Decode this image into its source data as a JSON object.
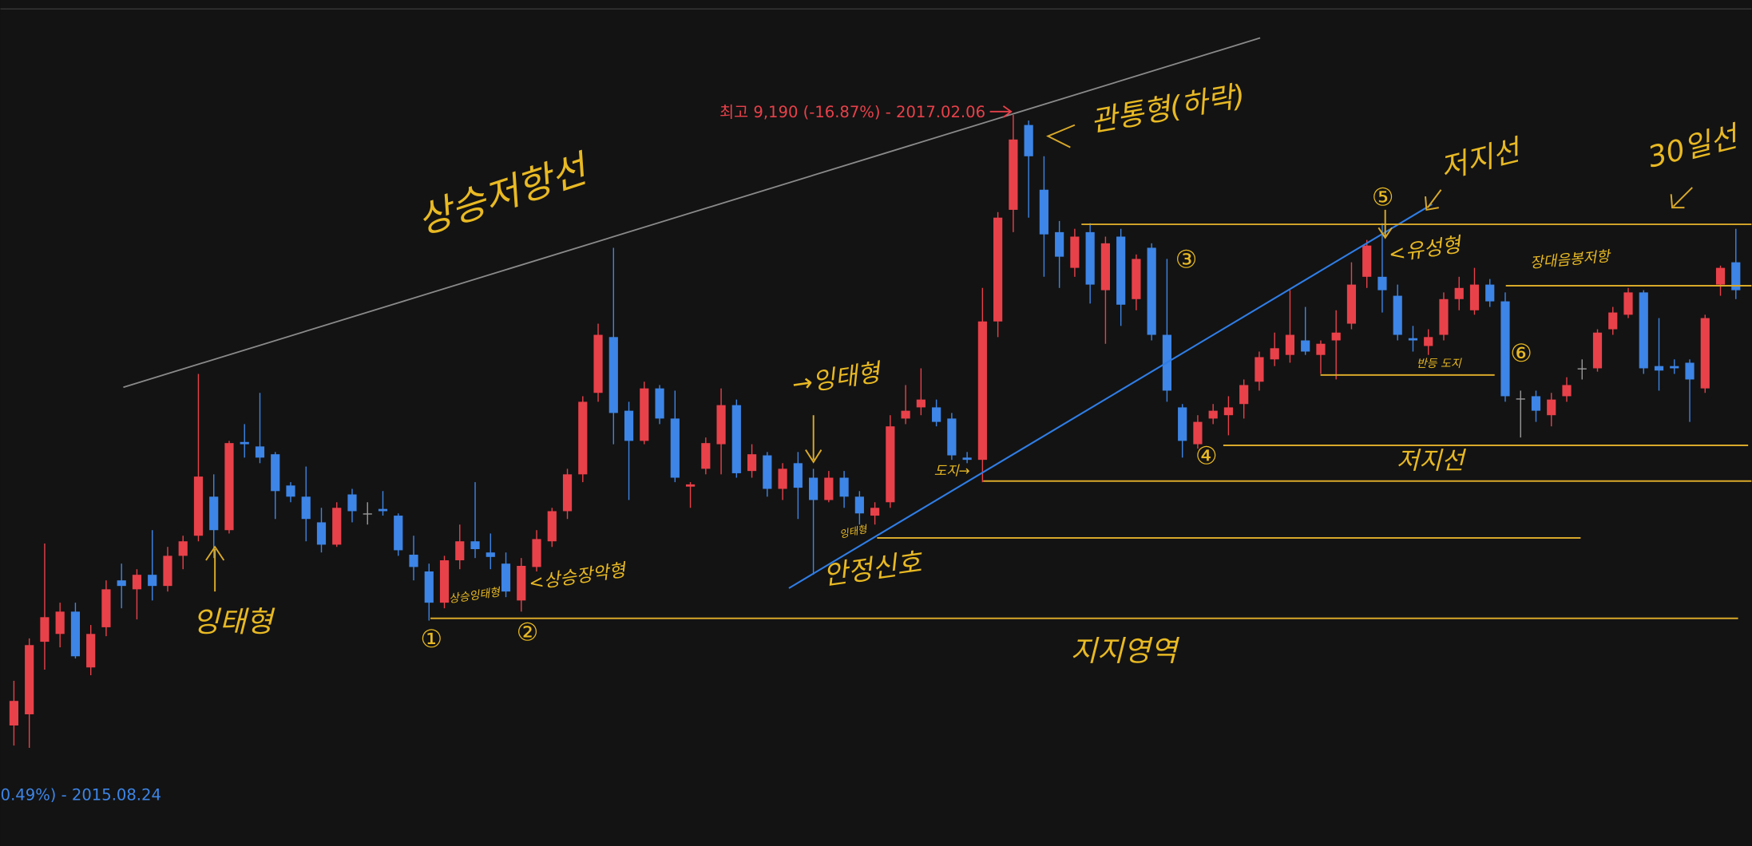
{
  "chart_data": {
    "type": "candlestick",
    "open": [
      3720,
      3820,
      4470,
      4540,
      4740,
      4240,
      4600,
      5020,
      4940,
      5070,
      4970,
      5240,
      5420,
      5770,
      5470,
      6260,
      6220,
      6150,
      5870,
      5770,
      5540,
      5340,
      5790,
      5620,
      5660,
      5600,
      5250,
      5100,
      4820,
      5200,
      5370,
      5270,
      5170,
      4840,
      5140,
      5370,
      5640,
      5970,
      6700,
      7200,
      6540,
      6270,
      6740,
      6470,
      5860,
      6020,
      6240,
      6590,
      6000,
      6140,
      5840,
      6070,
      5940,
      5740,
      5940,
      5770,
      5600,
      5720,
      6470,
      6570,
      6570,
      6470,
      6120,
      6100,
      7340,
      8340,
      9100,
      8520,
      8140,
      7820,
      8140,
      7620,
      8100,
      7540,
      8000,
      7220,
      6570,
      6240,
      6470,
      6500,
      6600,
      6800,
      7000,
      7040,
      7170,
      7040,
      7170,
      7320,
      7740,
      7740,
      7570,
      7190,
      7120,
      7220,
      7540,
      7440,
      7670,
      7520,
      6650,
      6670,
      6500,
      6670,
      6920,
      6920,
      7270,
      7400,
      7600,
      6940,
      6940,
      6970,
      6740,
      7670,
      7870
    ],
    "high": [
      4120,
      4500,
      5350,
      4820,
      4820,
      4620,
      5020,
      5170,
      5120,
      5470,
      5320,
      5420,
      6870,
      5970,
      6270,
      6420,
      6700,
      6170,
      5900,
      6040,
      5670,
      5720,
      5840,
      5720,
      5820,
      5620,
      5420,
      5170,
      5240,
      5520,
      5900,
      5440,
      5270,
      5220,
      5470,
      5670,
      6020,
      6670,
      7320,
      8000,
      6620,
      6800,
      6770,
      6720,
      5900,
      6300,
      6740,
      6640,
      6240,
      6170,
      6070,
      6170,
      6020,
      6000,
      6000,
      5820,
      5720,
      6500,
      6770,
      6920,
      6640,
      6520,
      6170,
      7640,
      8320,
      9190,
      9140,
      8820,
      8240,
      8170,
      8220,
      8100,
      8170,
      7940,
      8040,
      7900,
      6600,
      6500,
      6600,
      6670,
      6820,
      7070,
      7240,
      7620,
      7470,
      7170,
      7440,
      7870,
      8070,
      8220,
      7670,
      7300,
      7270,
      7600,
      7740,
      7820,
      7720,
      7600,
      6720,
      6720,
      6700,
      6840,
      7000,
      7270,
      7470,
      7640,
      7620,
      7370,
      7000,
      7000,
      7400,
      7840,
      8170
    ],
    "low": [
      3540,
      3520,
      4220,
      4420,
      4320,
      4170,
      4520,
      4770,
      4670,
      4840,
      4920,
      5120,
      5370,
      5220,
      5440,
      6120,
      6070,
      5570,
      5720,
      5370,
      5270,
      5320,
      5540,
      5520,
      5600,
      5240,
      5020,
      4660,
      4770,
      5120,
      5220,
      5120,
      4870,
      4740,
      5100,
      5320,
      5570,
      5900,
      6620,
      6240,
      5740,
      6240,
      6420,
      5900,
      5670,
      5970,
      5970,
      5940,
      5940,
      5770,
      5740,
      5570,
      5070,
      5720,
      5670,
      5520,
      5520,
      5670,
      6420,
      6500,
      6400,
      6100,
      6070,
      5900,
      7200,
      8140,
      8270,
      7740,
      7640,
      7740,
      7500,
      7140,
      7300,
      7440,
      7170,
      6620,
      6120,
      6200,
      6420,
      6320,
      6470,
      6720,
      6940,
      6970,
      7040,
      6870,
      6820,
      7270,
      7640,
      7420,
      7170,
      7070,
      7040,
      7170,
      7440,
      7400,
      7470,
      6620,
      6300,
      6440,
      6400,
      6620,
      6820,
      6890,
      7220,
      7370,
      6870,
      6720,
      6870,
      6440,
      6700,
      7570,
      7540
    ],
    "close": [
      3940,
      4440,
      4690,
      4740,
      4340,
      4540,
      4940,
      4970,
      5070,
      4970,
      5240,
      5370,
      5950,
      5470,
      6250,
      6240,
      6120,
      5820,
      5770,
      5570,
      5340,
      5670,
      5640,
      5620,
      5640,
      5290,
      5140,
      4820,
      5200,
      5370,
      5300,
      5230,
      4920,
      5150,
      5390,
      5640,
      5970,
      6620,
      7220,
      6520,
      6270,
      6740,
      6470,
      5940,
      5880,
      6250,
      6590,
      5980,
      6150,
      5840,
      6020,
      5850,
      5740,
      5940,
      5770,
      5620,
      5670,
      6400,
      6540,
      6640,
      6440,
      6140,
      6100,
      7340,
      8270,
      8970,
      8820,
      8120,
      7920,
      8100,
      7670,
      8040,
      7490,
      7900,
      7220,
      6720,
      6270,
      6440,
      6540,
      6570,
      6770,
      7020,
      7100,
      7220,
      7070,
      7140,
      7240,
      7670,
      8020,
      7620,
      7220,
      7170,
      7200,
      7540,
      7640,
      7670,
      7520,
      6670,
      6650,
      6540,
      6640,
      6770,
      6920,
      7240,
      7420,
      7600,
      6920,
      6900,
      6920,
      6820,
      7370,
      7820,
      7620
    ],
    "ylim": [
      2640,
      10220
    ],
    "up_color": "#e8414a",
    "down_color": "#3d85e6",
    "flat_color": "#9a9a9a",
    "high_label": "최고 9,190 (-16.87%) - 2017.02.06",
    "low_label": "0.49%) - 2015.08.24"
  },
  "annotations": [
    "상승저항선",
    "관통형(하락)",
    "저지선",
    "30일선",
    "잉태형",
    "상승잉태형",
    "<상승장악형",
    "→잉태형",
    "안정신호",
    "지지영역",
    "저지선",
    "장대음봉저항",
    "<유성형",
    "반등 도지",
    "도지→",
    "잉태형",
    "①",
    "②",
    "③",
    "④",
    "⑤",
    "⑥"
  ]
}
